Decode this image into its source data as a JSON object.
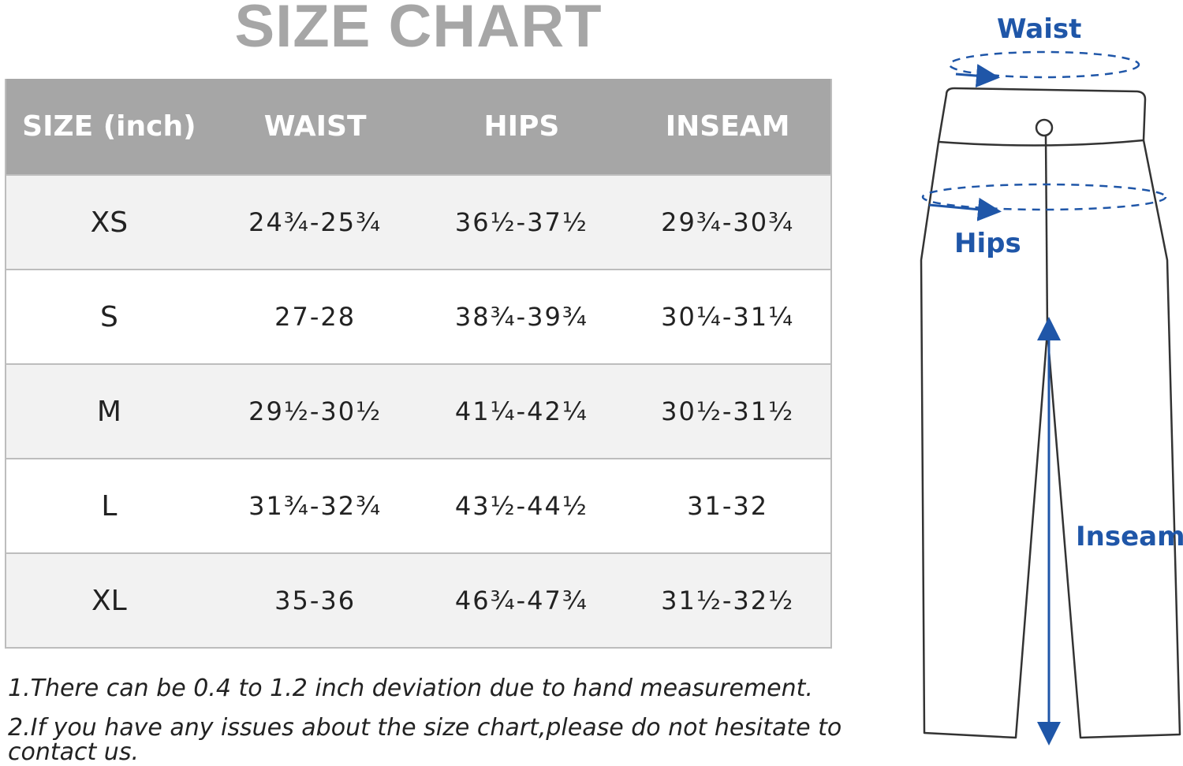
{
  "title": "SIZE CHART",
  "table": {
    "headers": [
      "SIZE (inch)",
      "WAIST",
      "HIPS",
      "INSEAM"
    ],
    "rows": [
      {
        "size": "XS",
        "waist": "24¾-25¾",
        "hips": "36½-37½",
        "inseam": "29¾-30¾"
      },
      {
        "size": "S",
        "waist": "27-28",
        "hips": "38¾-39¾",
        "inseam": "30¼-31¼"
      },
      {
        "size": "M",
        "waist": "29½-30½",
        "hips": "41¼-42¼",
        "inseam": "30½-31½"
      },
      {
        "size": "L",
        "waist": "31¾-32¾",
        "hips": "43½-44½",
        "inseam": "31-32"
      },
      {
        "size": "XL",
        "waist": "35-36",
        "hips": "46¾-47¾",
        "inseam": "31½-32½"
      }
    ]
  },
  "notes": [
    "1.There can be 0.4 to 1.2 inch deviation due to hand measurement.",
    "2.If you have any issues about the size chart,please do not hesitate to contact us."
  ],
  "diagram": {
    "waist_label": "Waist",
    "hips_label": "Hips",
    "inseam_label": "Inseam",
    "colors": {
      "accent": "#1f56a8",
      "outline": "#333333",
      "header_bg": "#a6a6a6",
      "row_alt": "#f2f2f2"
    },
    "icon": "pants-measurement-icon"
  }
}
